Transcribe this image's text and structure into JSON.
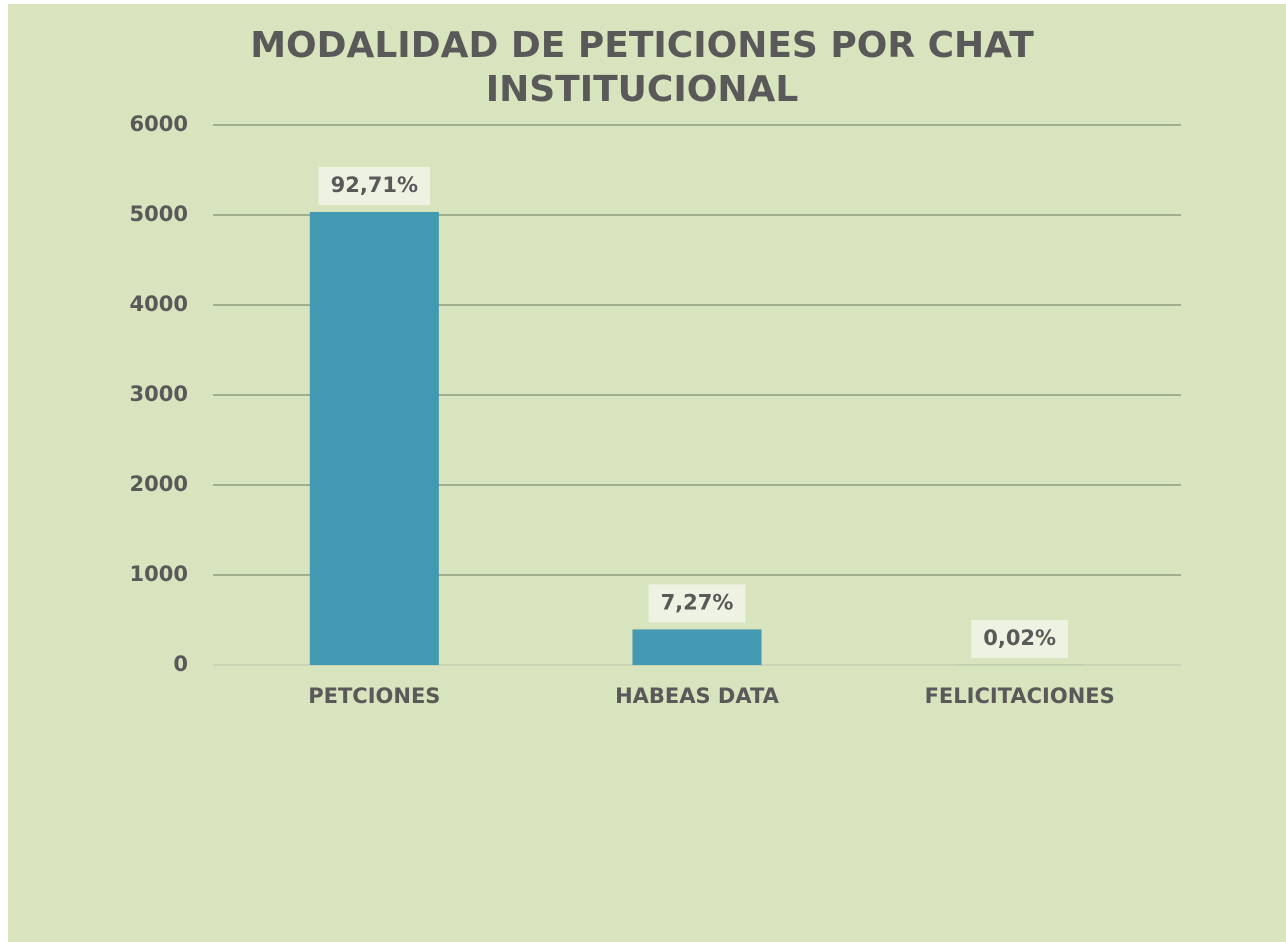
{
  "chart_data": {
    "type": "bar",
    "title": "MODALIDAD DE PETICIONES POR CHAT INSTITUCIONAL",
    "categories": [
      "PETCIONES",
      "HABEAS DATA",
      "FELICITACIONES"
    ],
    "values": [
      5034,
      395,
      1
    ],
    "value_labels": [
      "92,71%",
      "7,27%",
      "0,02%"
    ],
    "color": "#4399b1",
    "ylim": [
      0,
      6000
    ],
    "yticks": [
      0,
      1000,
      2000,
      3000,
      4000,
      5000,
      6000
    ],
    "grid": true
  }
}
